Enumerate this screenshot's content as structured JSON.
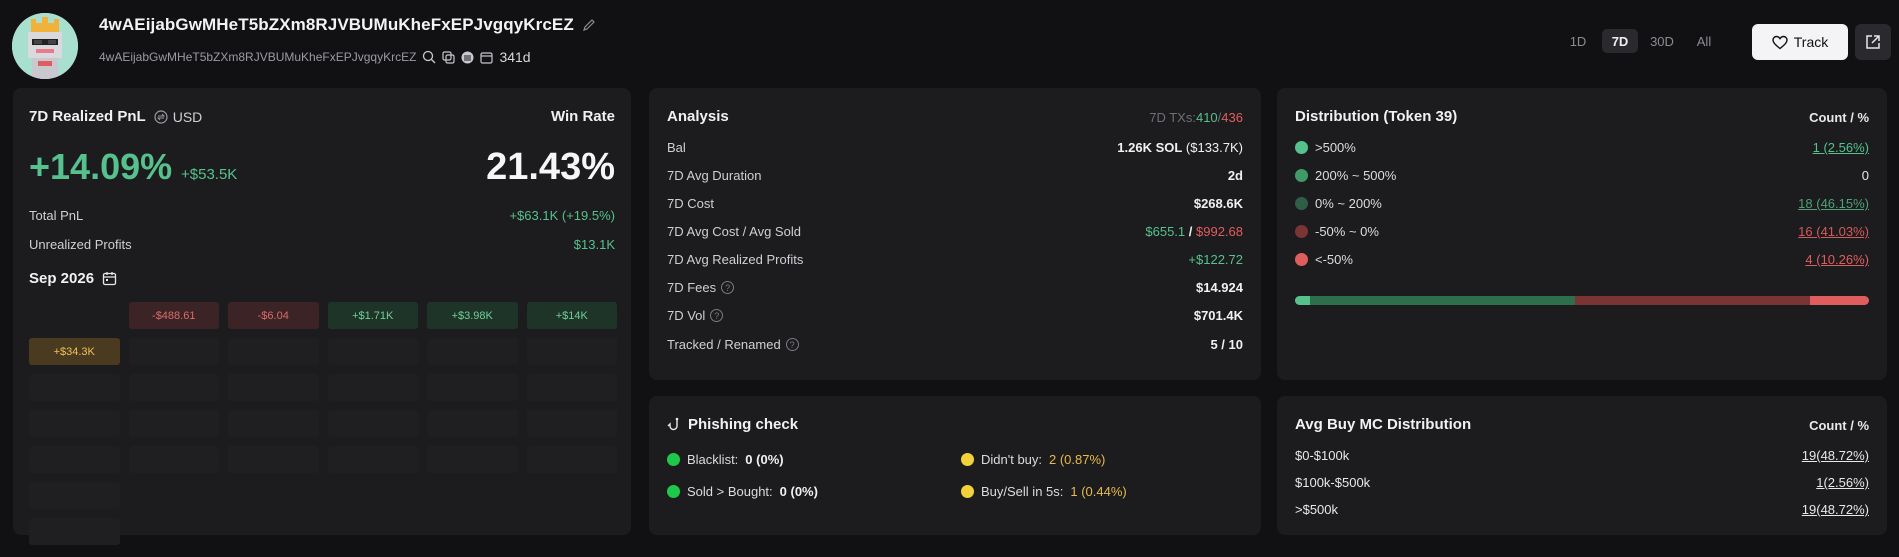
{
  "header": {
    "wallet_title": "4wAEijabGwMHeT5bZXm8RJVBUMuKheFxEPJvgqyKrcEZ",
    "wallet_address": "4wAEijabGwMHeT5bZXm8RJVBUMuKheFxEPJvgqyKrcEZ",
    "age": "341d",
    "ranges": [
      "1D",
      "7D",
      "30D",
      "All"
    ],
    "active_range": "7D",
    "track_label": "Track"
  },
  "pnl": {
    "title": "7D Realized PnL",
    "currency": "USD",
    "win_rate_label": "Win Rate",
    "pct": "+14.09%",
    "usd": "+$53.5K",
    "win_rate": "21.43%",
    "total_pnl_label": "Total PnL",
    "total_pnl_value": "+$63.1K (+19.5%)",
    "unrealized_label": "Unrealized Profits",
    "unrealized_value": "$13.1K",
    "month": "Sep 2026",
    "calendar": [
      {
        "label": "",
        "kind": "blank"
      },
      {
        "label": "-$488.61",
        "kind": "neg"
      },
      {
        "label": "-$6.04",
        "kind": "neg"
      },
      {
        "label": "+$1.71K",
        "kind": "pos"
      },
      {
        "label": "+$3.98K",
        "kind": "pos"
      },
      {
        "label": "+$14K",
        "kind": "pos"
      },
      {
        "label": "+$34.3K",
        "kind": "yel"
      }
    ]
  },
  "analysis": {
    "title": "Analysis",
    "txs_label": "7D TXs:",
    "txs_buy": "410",
    "txs_sep": "/",
    "txs_sell": "436",
    "rows": [
      {
        "label": "Bal",
        "value": "1.26K SOL",
        "extra": " ($133.7K)"
      },
      {
        "label": "7D Avg Duration",
        "value": "2d"
      },
      {
        "label": "7D Cost",
        "value": "$268.6K"
      },
      {
        "label": "7D Avg Cost / Avg Sold",
        "value_green": "$655.1",
        "sep": " / ",
        "value_red": "$992.68"
      },
      {
        "label": "7D Avg Realized Profits",
        "value": "+$122.72"
      },
      {
        "label": "7D Fees",
        "value": "$14.924"
      },
      {
        "label": "7D Vol",
        "value": "$701.4K"
      },
      {
        "label": "Tracked / Renamed",
        "value": "5 / 10"
      }
    ]
  },
  "phishing": {
    "title": "Phishing check",
    "items": [
      {
        "label": "Blacklist:",
        "value": "0 (0%)",
        "color": "green"
      },
      {
        "label": "Didn't buy:",
        "value": "2 (0.87%)",
        "color": "yellow"
      },
      {
        "label": "Sold > Bought:",
        "value": "0 (0%)",
        "color": "green"
      },
      {
        "label": "Buy/Sell in 5s:",
        "value": "1 (0.44%)",
        "color": "yellow"
      }
    ]
  },
  "distribution": {
    "title": "Distribution (Token 39)",
    "count_header": "Count / %",
    "rows": [
      {
        "label": ">500%",
        "value": "1 (2.56%)",
        "color": "#56c18c"
      },
      {
        "label": "200% ~ 500%",
        "value": "0",
        "color": "#3f9a68"
      },
      {
        "label": "0% ~ 200%",
        "value": "18 (46.15%)",
        "color": "#2e5e45"
      },
      {
        "label": "-50% ~ 0%",
        "value": "16 (41.03%)",
        "color": "#7a3434"
      },
      {
        "label": "<-50%",
        "value": "4 (10.26%)",
        "color": "#e05d5d"
      }
    ],
    "bar_segments": [
      {
        "pct": 2.56,
        "color": "#56c18c"
      },
      {
        "pct": 46.15,
        "color": "#2e6e4d"
      },
      {
        "pct": 41.03,
        "color": "#7a3434"
      },
      {
        "pct": 10.26,
        "color": "#e05d5d"
      }
    ]
  },
  "avg_buy_mc": {
    "title": "Avg Buy MC Distribution",
    "count_header": "Count / %",
    "rows": [
      {
        "label": "$0-$100k",
        "value": "19(48.72%)"
      },
      {
        "label": "$100k-$500k",
        "value": "1(2.56%)"
      },
      {
        "label": ">$500k",
        "value": "19(48.72%)"
      }
    ]
  }
}
